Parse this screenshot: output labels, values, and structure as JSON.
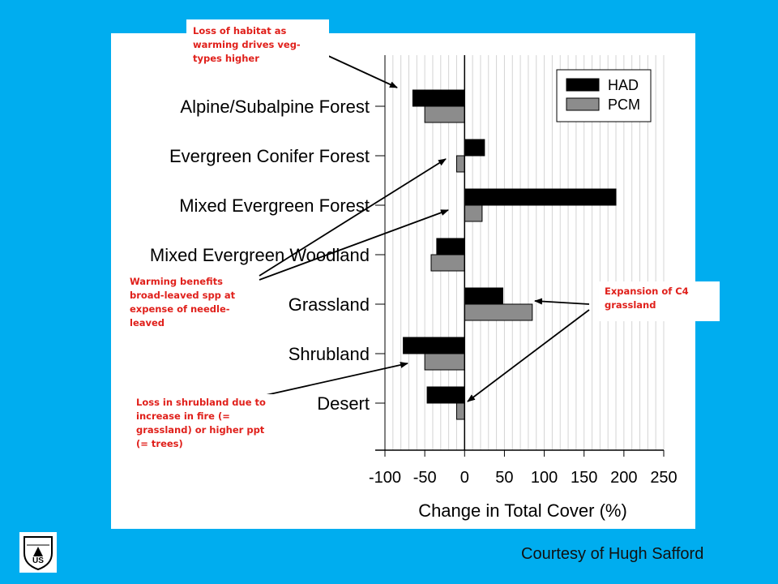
{
  "chart_data": {
    "type": "bar",
    "orientation": "horizontal",
    "categories": [
      "Alpine/Subalpine Forest",
      "Evergreen Conifer Forest",
      "Mixed Evergreen Forest",
      "Mixed Evergreen Woodland",
      "Grassland",
      "Shrubland",
      "Desert"
    ],
    "series": [
      {
        "name": "HAD",
        "values": [
          -65,
          25,
          190,
          -35,
          48,
          -77,
          -47
        ]
      },
      {
        "name": "PCM",
        "values": [
          -50,
          -10,
          22,
          -42,
          85,
          -50,
          -10
        ]
      }
    ],
    "xlabel": "Change in Total Cover (%)",
    "xlim": [
      -100,
      250
    ],
    "xticks": [
      -100,
      -50,
      0,
      50,
      100,
      150,
      200,
      250
    ],
    "grid": "vertical",
    "legend": "top-right"
  },
  "colors": {
    "had": "#000000",
    "pcm": "#8c8c8c",
    "annotation": "#e0201b",
    "background": "#00adef"
  },
  "annotations": {
    "habitat": "Loss of habitat as warming drives veg-types higher",
    "warming": "Warming benefits broad-leaved spp at expense of needle-leaved",
    "shrubland": "Loss in shrubland due to increase in fire (= grassland) or higher ppt (= trees)",
    "c4": "Expansion of C4 grassland"
  },
  "credit": "Courtesy of Hugh Safford",
  "logo": {
    "icon": "forest-service-shield-icon",
    "text": "US"
  }
}
